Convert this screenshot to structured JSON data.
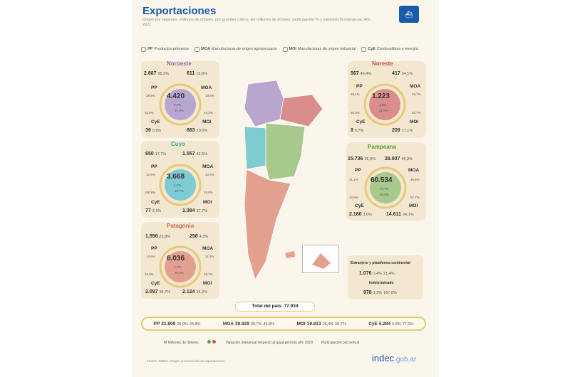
{
  "title": "Exportaciones",
  "subtitle": "Origen por regiones, millones de dólares, por grandes rubros. En millones de dólares, participación % y variación % interanual. Año 2021",
  "legend": [
    {
      "code": "PP",
      "label": "Productos primarios"
    },
    {
      "code": "MOA",
      "label": "Manufacturas de origen agropecuario"
    },
    {
      "code": "MOI",
      "label": "Manufacturas de origen industrial"
    },
    {
      "code": "CyE",
      "label": "Combustibles y energía"
    }
  ],
  "colors": {
    "Noroeste": "#b9a6cf",
    "Noreste": "#d98e8c",
    "Cuyo": "#7ecbd0",
    "Pampeana": "#a7c98b",
    "Patagonia": "#e3a08f",
    "title": "#1a5aa8",
    "panel": "#f3e8cf",
    "ring": "#e8c97a",
    "positive": "#4aa64a",
    "negative": "#d9534f"
  },
  "chart_data": {
    "type": "table",
    "units": "Millones de dólares",
    "regions": [
      {
        "name": "Noroeste",
        "total": "4.420",
        "share_pct": "5,7%",
        "var_pct": "27,9%",
        "PP": {
          "value": "2.887",
          "share": "65,3%",
          "var": "28,8%"
        },
        "MOA": {
          "value": "611",
          "share": "13,8%",
          "var": "19,6%"
        },
        "CyE": {
          "value": "39",
          "share": "0,9%",
          "var": "61,0%"
        },
        "MOI": {
          "value": "883",
          "share": "20,0%",
          "var": "44,2%"
        }
      },
      {
        "name": "Noreste",
        "total": "1.223",
        "share_pct": "1,6%",
        "var_pct": "21,6%",
        "PP": {
          "value": "567",
          "share": "46,4%",
          "var": "16,1%"
        },
        "MOA": {
          "value": "417",
          "share": "34,1%",
          "var": "23,7%"
        },
        "CyE": {
          "value": "9",
          "share": "0,7%",
          "var": "50,0%"
        },
        "MOI": {
          "value": "209",
          "share": "17,1%",
          "var": "33,7%"
        }
      },
      {
        "name": "Cuyo",
        "total": "3.668",
        "share_pct": "4,7%",
        "var_pct": "20,7%",
        "PP": {
          "value": "650",
          "share": "17,7%",
          "var": "12,9%"
        },
        "MOA": {
          "value": "1.557",
          "share": "42,5%",
          "var": "10,6%"
        },
        "CyE": {
          "value": "77",
          "share": "2,1%",
          "var": "180,6%"
        },
        "MOI": {
          "value": "1.384",
          "share": "37,7%",
          "var": "29,8%"
        }
      },
      {
        "name": "Pampeana",
        "total": "60.534",
        "share_pct": "77,7%",
        "var_pct": "45,8%",
        "PP": {
          "value": "15.736",
          "share": "26,0%",
          "var": "41,1%"
        },
        "MOA": {
          "value": "28.007",
          "share": "46,3%",
          "var": "45,6%"
        },
        "CyE": {
          "value": "2.180",
          "share": "3,6%",
          "var": "22,9%"
        },
        "MOI": {
          "value": "14.611",
          "share": "24,1%",
          "var": "57,7%"
        }
      },
      {
        "name": "Patagonia",
        "total": "6.036",
        "share_pct": "7,7%",
        "var_pct": "25,6%",
        "PP": {
          "value": "1.556",
          "share": "25,8%",
          "var": "14,8%"
        },
        "MOA": {
          "value": "258",
          "share": "4,3%",
          "var": "11,3%"
        },
        "CyE": {
          "value": "2.097",
          "share": "34,7%",
          "var": "34,0%"
        },
        "MOI": {
          "value": "2.124",
          "share": "35,2%",
          "var": "16,7%"
        }
      }
    ],
    "extra": [
      {
        "label": "Extranjero y plataforma continental",
        "value": "1.076",
        "share": "1,4%",
        "var": "21,4%"
      },
      {
        "label": "Indeterminado",
        "value": "978",
        "share": "1,3%",
        "var": "167,8%"
      }
    ],
    "country_total": {
      "label": "Total del país:",
      "value": "77.934"
    },
    "rubro_totals": [
      {
        "code": "PP",
        "value": "21.809",
        "share": "28,0%",
        "var": "34,8%"
      },
      {
        "code": "MOA",
        "value": "30.929",
        "share": "39,7%",
        "var": "43,8%"
      },
      {
        "code": "MOI",
        "value": "19.813",
        "share": "25,4%",
        "var": "50,7%"
      },
      {
        "code": "CyE",
        "value": "5.284",
        "share": "6,8%",
        "var": "77,0%"
      }
    ]
  },
  "key": {
    "millions": "M  Millones de dólares",
    "dot_green": "",
    "dot_red": "",
    "var_label": "Variación interanual respecto al igual período año 2020",
    "share_label": "Participación porcentual"
  },
  "source": "Fuente: INDEC. Origen provincial de las exportaciones.",
  "brand": {
    "name": "indec",
    "suffix": ".gob.ar"
  }
}
